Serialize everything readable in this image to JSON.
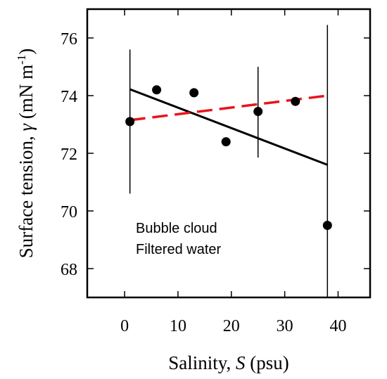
{
  "chart_data": {
    "type": "scatter",
    "xlabel": {
      "prefix": "Salinity, ",
      "symbol": "S",
      "suffix": " (psu)"
    },
    "ylabel": {
      "prefix": "Surface tension, ",
      "symbol": "γ",
      "suffix": " (mN m",
      "superscript": "-1",
      "close": ")"
    },
    "xlim": [
      -7,
      46
    ],
    "ylim": [
      67,
      77
    ],
    "x_ticks": [
      0,
      10,
      20,
      30,
      40
    ],
    "y_ticks": [
      68,
      70,
      72,
      74,
      76
    ],
    "annotations": [
      "Bubble cloud",
      "Filtered water"
    ],
    "points": [
      {
        "x": 1,
        "y": 73.1,
        "err_low": 70.6,
        "err_high": 75.6
      },
      {
        "x": 6,
        "y": 74.2
      },
      {
        "x": 13,
        "y": 74.1
      },
      {
        "x": 19,
        "y": 72.4
      },
      {
        "x": 25,
        "y": 73.45,
        "err_low": 71.85,
        "err_high": 75.0
      },
      {
        "x": 32,
        "y": 73.8
      },
      {
        "x": 38,
        "y": 69.5,
        "err_low": 67.0,
        "err_high": 76.45
      }
    ],
    "fits": [
      {
        "style": "solid",
        "color": "#000000",
        "x": [
          1,
          38
        ],
        "y": [
          74.22,
          71.6
        ]
      },
      {
        "style": "dashed",
        "color": "#e8141b",
        "x": [
          1,
          38
        ],
        "y": [
          73.15,
          74.0
        ]
      }
    ]
  }
}
